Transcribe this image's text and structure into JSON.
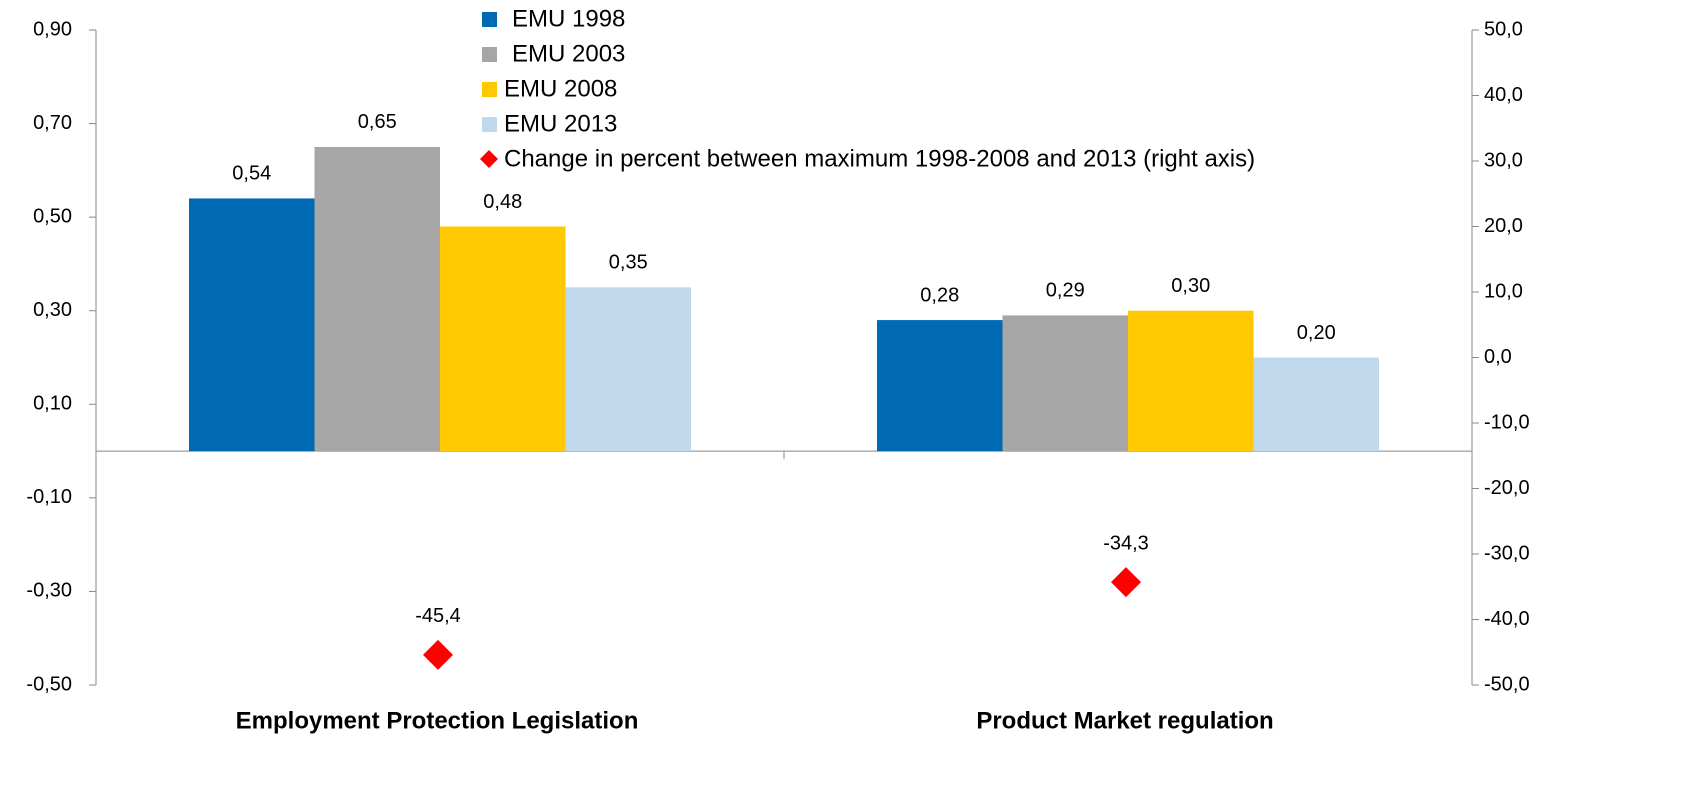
{
  "chart_data": {
    "type": "bar",
    "categories": [
      "Employment Protection Legislation",
      "Product Market regulation"
    ],
    "series": [
      {
        "name": "EMU 1998",
        "color": "#0069b4",
        "values": [
          0.54,
          0.28
        ],
        "value_labels": [
          "0,54",
          "0,28"
        ]
      },
      {
        "name": "EMU 2003",
        "color": "#a6a6a6",
        "values": [
          0.65,
          0.29
        ],
        "value_labels": [
          "0,65",
          "0,29"
        ]
      },
      {
        "name": "EMU 2008",
        "color": "#ffc800",
        "values": [
          0.48,
          0.3
        ],
        "value_labels": [
          "0,48",
          "0,30"
        ]
      },
      {
        "name": "EMU 2013",
        "color": "#c0d9ec",
        "values": [
          0.35,
          0.2
        ],
        "value_labels": [
          "0,35",
          "0,20"
        ]
      },
      {
        "name": "Change in percent between maximum 1998-2008 and 2013 (right axis)",
        "color": "#ff0000",
        "axis": "y2",
        "values": [
          -45.4,
          -34.3
        ],
        "value_labels": [
          "-45,4",
          "-34,3"
        ]
      }
    ],
    "ylim": [
      -0.5,
      0.9
    ],
    "yticks": [
      {
        "value": -0.5,
        "label": "-0,50"
      },
      {
        "value": -0.3,
        "label": "-0,30"
      },
      {
        "value": -0.1,
        "label": "-0,10"
      },
      {
        "value": 0.1,
        "label": "0,10"
      },
      {
        "value": 0.3,
        "label": "0,30"
      },
      {
        "value": 0.5,
        "label": "0,50"
      },
      {
        "value": 0.7,
        "label": "0,70"
      },
      {
        "value": 0.9,
        "label": "0,90"
      }
    ],
    "y2lim": [
      -50,
      50
    ],
    "y2ticks": [
      {
        "value": -50,
        "label": "-50,0"
      },
      {
        "value": -40,
        "label": "-40,0"
      },
      {
        "value": -30,
        "label": "-30,0"
      },
      {
        "value": -20,
        "label": "-20,0"
      },
      {
        "value": -10,
        "label": "-10,0"
      },
      {
        "value": 0,
        "label": "0,0"
      },
      {
        "value": 10,
        "label": "10,0"
      },
      {
        "value": 20,
        "label": "20,0"
      },
      {
        "value": 30,
        "label": "30,0"
      },
      {
        "value": 40,
        "label": "40,0"
      },
      {
        "value": 50,
        "label": "50,0"
      }
    ],
    "grid": false
  }
}
